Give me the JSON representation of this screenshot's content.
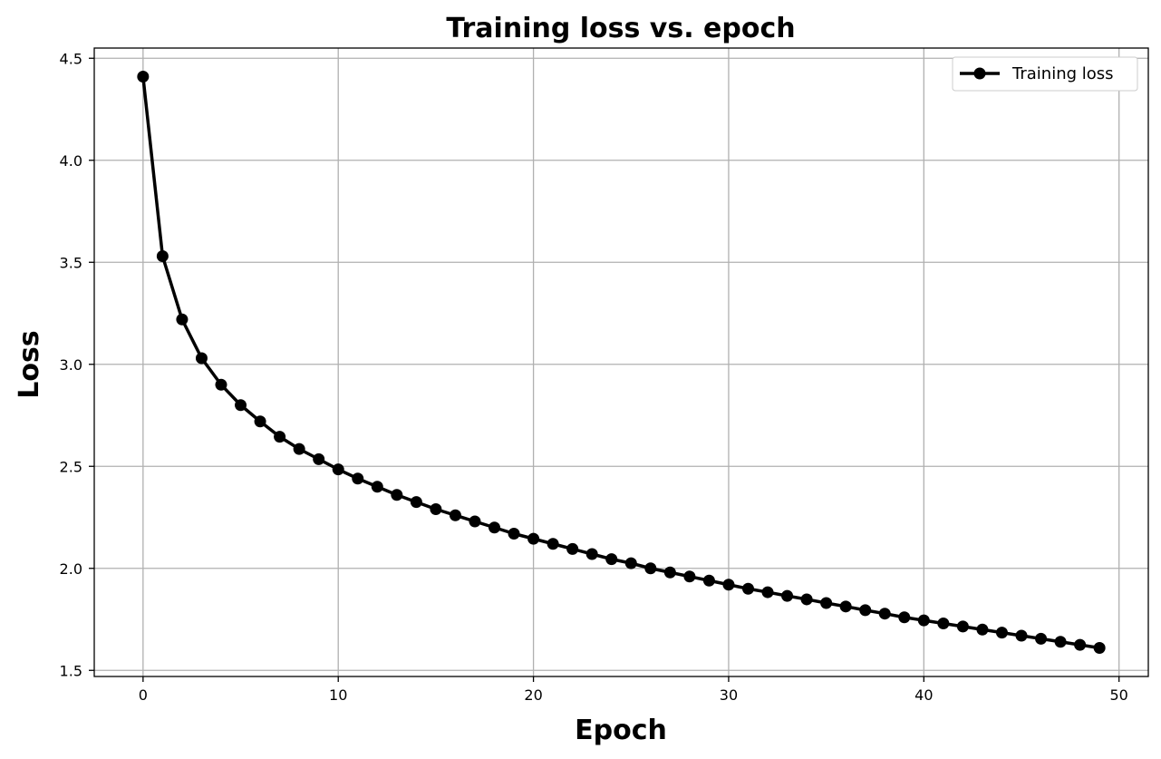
{
  "chart_data": {
    "type": "line",
    "title": "Training loss vs. epoch",
    "xlabel": "Epoch",
    "ylabel": "Loss",
    "xlim": [
      -2.5,
      51.5
    ],
    "ylim": [
      1.47,
      4.55
    ],
    "xticks": [
      0,
      10,
      20,
      30,
      40,
      50
    ],
    "yticks": [
      1.5,
      2.0,
      2.5,
      3.0,
      3.5,
      4.0,
      4.5
    ],
    "xtick_labels": [
      "0",
      "10",
      "20",
      "30",
      "40",
      "50"
    ],
    "ytick_labels": [
      "1.5",
      "2.0",
      "2.5",
      "3.0",
      "3.5",
      "4.0",
      "4.5"
    ],
    "grid": true,
    "legend_position": "top-right",
    "series": [
      {
        "name": "Training loss",
        "color": "#000000",
        "marker": "circle",
        "x": [
          0,
          1,
          2,
          3,
          4,
          5,
          6,
          7,
          8,
          9,
          10,
          11,
          12,
          13,
          14,
          15,
          16,
          17,
          18,
          19,
          20,
          21,
          22,
          23,
          24,
          25,
          26,
          27,
          28,
          29,
          30,
          31,
          32,
          33,
          34,
          35,
          36,
          37,
          38,
          39,
          40,
          41,
          42,
          43,
          44,
          45,
          46,
          47,
          48,
          49
        ],
        "y": [
          4.41,
          3.53,
          3.22,
          3.03,
          2.9,
          2.8,
          2.72,
          2.645,
          2.585,
          2.535,
          2.485,
          2.44,
          2.4,
          2.36,
          2.325,
          2.29,
          2.26,
          2.23,
          2.2,
          2.17,
          2.145,
          2.12,
          2.095,
          2.07,
          2.045,
          2.025,
          2.0,
          1.98,
          1.96,
          1.94,
          1.92,
          1.9,
          1.883,
          1.865,
          1.848,
          1.83,
          1.813,
          1.795,
          1.778,
          1.76,
          1.745,
          1.73,
          1.715,
          1.7,
          1.685,
          1.67,
          1.655,
          1.64,
          1.625,
          1.61
        ]
      }
    ]
  }
}
